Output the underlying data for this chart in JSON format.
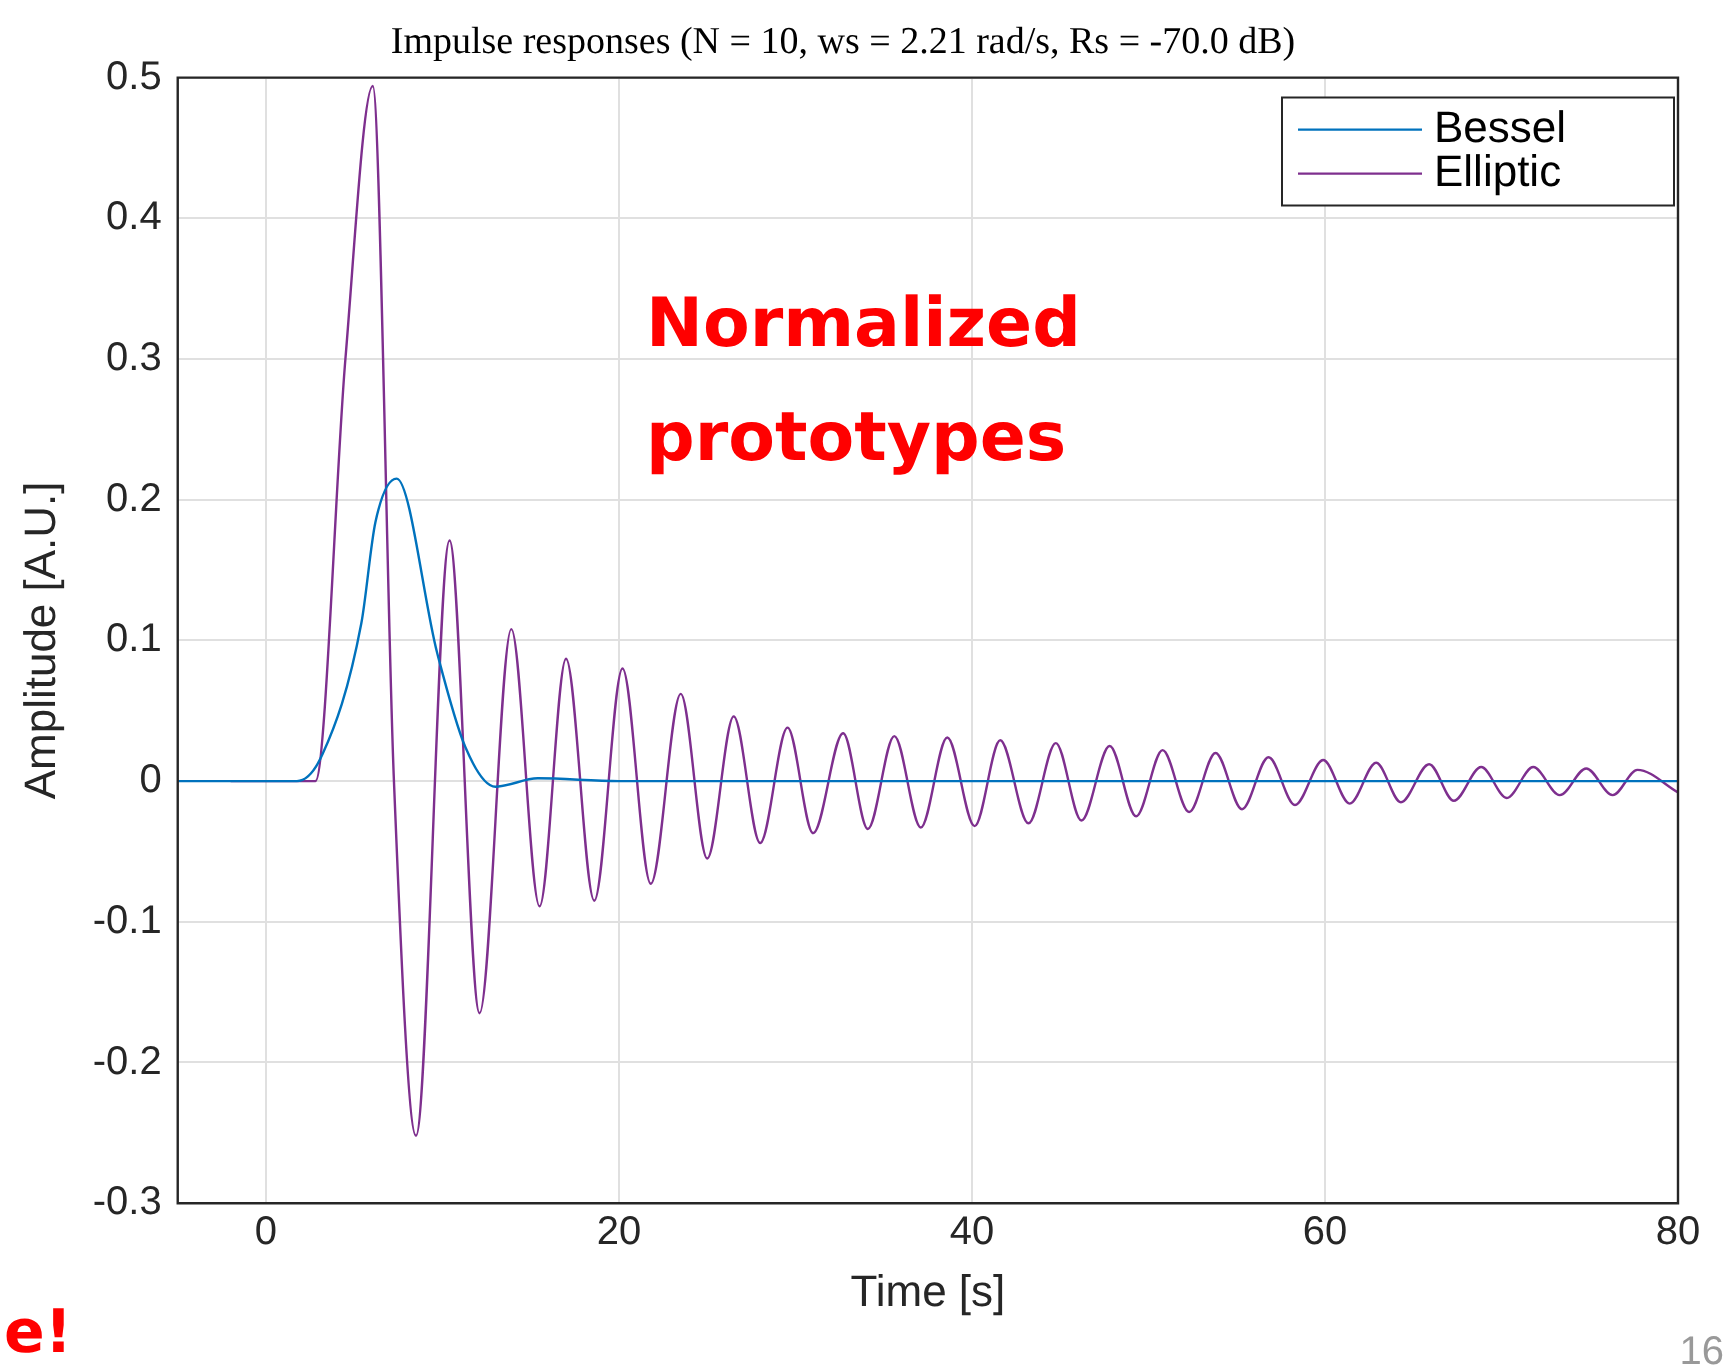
{
  "chart_data": {
    "type": "line",
    "title": "Impulse responses (N = 10, ws = 2.21 rad/s, Rs = -70.0 dB)",
    "xlabel": "Time [s]",
    "ylabel": "Amplitude [A.U.]",
    "xlim": [
      -5,
      80
    ],
    "xticks": [
      0,
      20,
      40,
      60,
      80
    ],
    "ylim": [
      -0.3,
      0.5
    ],
    "yticks": [
      -0.3,
      -0.2,
      -0.1,
      0,
      0.1,
      0.2,
      0.3,
      0.4,
      0.5
    ],
    "grid": true,
    "legend": "top right",
    "marker": "none",
    "line_style": "solid",
    "annotations": [
      "Normalized prototypes",
      "e!",
      "16"
    ],
    "series": [
      {
        "name": "Bessel",
        "color": "#0072bd",
        "x": [
          -5,
          0,
          1.75,
          3.2,
          5.4,
          6.2,
          7.4,
          9.7,
          11.3,
          13,
          15.4,
          20,
          80
        ],
        "values": [
          0,
          0,
          0,
          0.019,
          0.112,
          0.184,
          0.215,
          0.091,
          0.024,
          -0.004,
          0.002,
          0,
          0
        ]
      },
      {
        "name": "Elliptic",
        "color": "#7e2f8e",
        "x": [
          -2,
          2.8,
          4.5,
          6.05,
          7.25,
          8.5,
          10.4,
          12.1,
          13.9,
          15.5,
          17,
          18.6,
          20.2,
          21.8,
          23.5,
          25,
          26.5,
          28,
          29.55,
          31,
          32.7,
          34.1,
          35.6,
          37.1,
          38.6,
          40.15,
          41.6,
          43.2,
          44.75,
          46.2,
          47.8,
          49.3,
          50.8,
          52.3,
          53.8,
          55.3,
          56.8,
          58.3,
          59.9,
          61.4,
          62.9,
          64.3,
          65.9,
          67.3,
          68.85,
          70.3,
          71.8,
          73.3,
          74.8,
          76.3,
          77.7,
          80
        ],
        "values": [
          0,
          0,
          0.3,
          0.494,
          0,
          -0.252,
          0.171,
          -0.165,
          0.108,
          -0.089,
          0.087,
          -0.085,
          0.08,
          -0.073,
          0.062,
          -0.055,
          0.046,
          -0.044,
          0.038,
          -0.037,
          0.034,
          -0.034,
          0.032,
          -0.033,
          0.031,
          -0.032,
          0.029,
          -0.03,
          0.027,
          -0.028,
          0.025,
          -0.025,
          0.022,
          -0.022,
          0.02,
          -0.02,
          0.017,
          -0.017,
          0.015,
          -0.016,
          0.013,
          -0.015,
          0.012,
          -0.014,
          0.01,
          -0.012,
          0.01,
          -0.01,
          0.009,
          -0.01,
          0.008,
          -0.008
        ]
      }
    ]
  }
}
